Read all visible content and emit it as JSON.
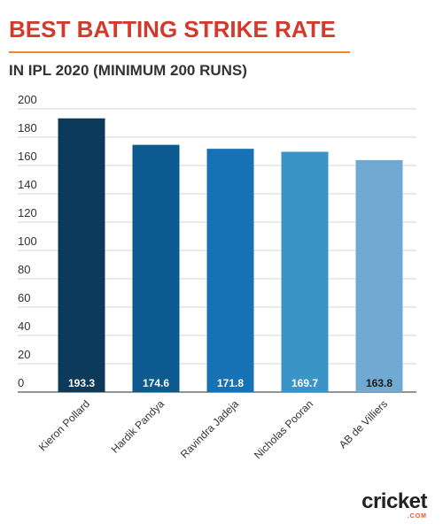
{
  "page": {
    "title": "BEST BATTING STRIKE RATE",
    "subtitle": "IN IPL 2020 (MINIMUM 200 RUNS)",
    "logo_word": "cricket",
    "logo_sub": ".COM"
  },
  "chart_data": {
    "type": "bar",
    "title": "BEST BATTING STRIKE RATE",
    "subtitle": "IN IPL 2020 (MINIMUM 200 RUNS)",
    "categories": [
      "Kieron Pollard",
      "Hardik Pandya",
      "Ravindra Jadeja",
      "Nicholas Pooran",
      "AB de Villiers"
    ],
    "values": [
      193.3,
      174.6,
      171.8,
      169.7,
      163.8
    ],
    "value_labels": [
      "193.3",
      "174.6",
      "171.8",
      "169.7",
      "163.8"
    ],
    "bar_colors": [
      "#0b3a5b",
      "#0c5a8f",
      "#1772b5",
      "#3a94c8",
      "#70aad2"
    ],
    "value_label_colors": [
      "#ffffff",
      "#ffffff",
      "#ffffff",
      "#ffffff",
      "#1a1a1a"
    ],
    "ylim": [
      0,
      200
    ],
    "yticks": [
      0,
      20,
      40,
      60,
      80,
      100,
      120,
      140,
      160,
      180,
      200
    ],
    "xlabel": "",
    "ylabel": "",
    "grid": true,
    "legend": "none"
  }
}
